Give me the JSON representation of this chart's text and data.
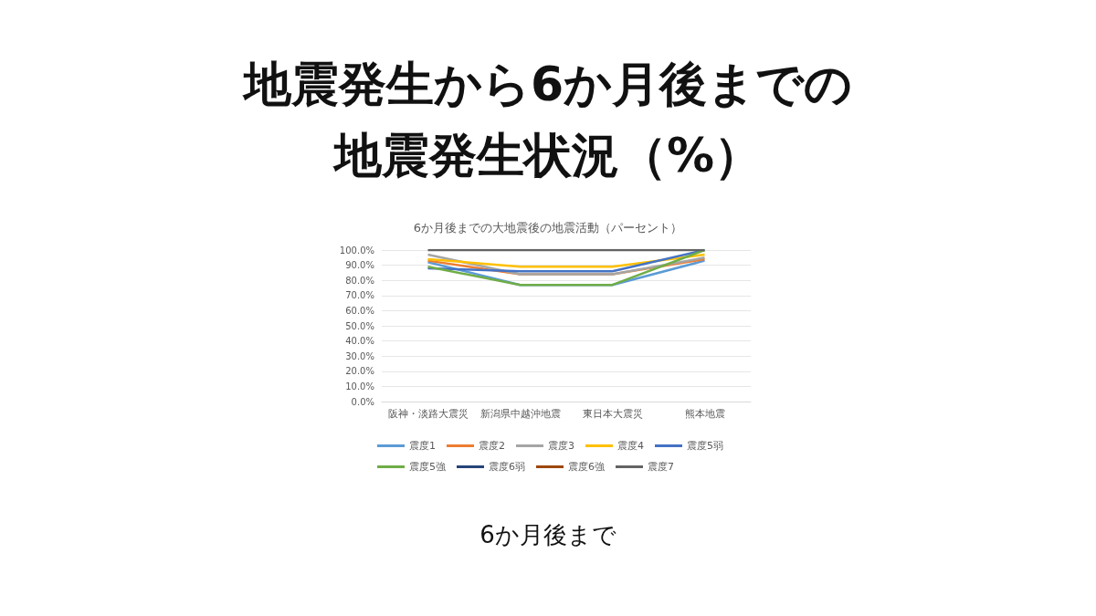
{
  "chart_data": {
    "type": "line",
    "title": "地震発生から6か月後までの地震発生状況（%）",
    "subtitle": "6か月後までの大地震後の地震活動（パーセント）",
    "annotations": [
      "6か月後まで"
    ],
    "categories": [
      "阪神・淡路大震災",
      "新潟県中越沖地震",
      "東日本大震災",
      "熊本地震"
    ],
    "series": [
      {
        "name": "震度1",
        "color": "#5b9bd5",
        "values": [
          92,
          77,
          77,
          93
        ]
      },
      {
        "name": "震度2",
        "color": "#ed7d31",
        "values": [
          93,
          84,
          84,
          94
        ]
      },
      {
        "name": "震度3",
        "color": "#a5a5a5",
        "values": [
          97,
          84,
          84,
          95
        ]
      },
      {
        "name": "震度4",
        "color": "#ffc000",
        "values": [
          94,
          89,
          89,
          97
        ]
      },
      {
        "name": "震度5弱",
        "color": "#4472c4",
        "values": [
          88,
          86,
          86,
          100
        ]
      },
      {
        "name": "震度5強",
        "color": "#70ad47",
        "values": [
          89,
          77,
          77,
          100
        ]
      },
      {
        "name": "震度6弱",
        "color": "#264478",
        "values": [
          null,
          null,
          null,
          null
        ]
      },
      {
        "name": "震度6強",
        "color": "#9e480e",
        "values": [
          null,
          null,
          null,
          null
        ]
      },
      {
        "name": "震度7",
        "color": "#636363",
        "values": [
          100,
          100,
          100,
          100
        ]
      }
    ],
    "ylim": [
      0,
      100
    ],
    "yticks": [
      {
        "value": 0,
        "label": "0.0%"
      },
      {
        "value": 10,
        "label": "10.0%"
      },
      {
        "value": 20,
        "label": "20.0%"
      },
      {
        "value": 30,
        "label": "30.0%"
      },
      {
        "value": 40,
        "label": "40.0%"
      },
      {
        "value": 50,
        "label": "50.0%"
      },
      {
        "value": 60,
        "label": "60.0%"
      },
      {
        "value": 70,
        "label": "70.0%"
      },
      {
        "value": 80,
        "label": "80.0%"
      },
      {
        "value": 90,
        "label": "90.0%"
      },
      {
        "value": 100,
        "label": "100.0%"
      }
    ],
    "grid": "y",
    "legend": "bottom",
    "marker": "none",
    "line_style": "solid"
  }
}
